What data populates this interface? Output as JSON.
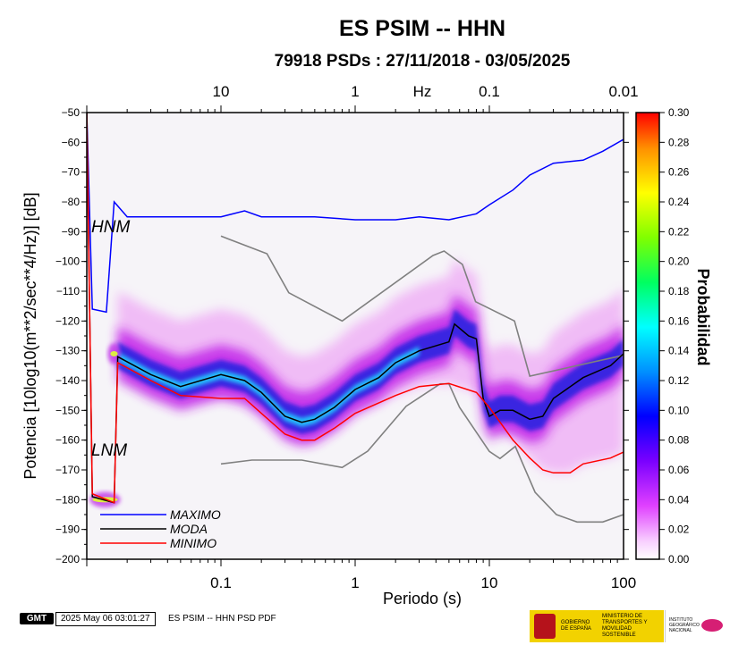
{
  "chart_data": {
    "type": "heatmap",
    "title": "ES PSIM -- HHN",
    "subtitle": "79918 PSDs : 27/11/2018 - 03/05/2025",
    "xlabel": "Periodo (s)",
    "x2label": "Hz",
    "ylabel": "Potencia [10log10(m**2/sec**4/Hz)] [dB]",
    "x_scale": "log",
    "xlim": [
      0.01,
      100
    ],
    "ylim": [
      -200,
      -50
    ],
    "x_ticks": [
      0.1,
      1,
      10,
      100
    ],
    "x_tick_labels": [
      "0.1",
      "1",
      "10",
      "100"
    ],
    "x2_ticks": [
      0.1,
      1,
      10,
      100
    ],
    "x2_tick_labels": [
      "10",
      "1",
      "0.1",
      "0.01"
    ],
    "y_ticks": [
      -200,
      -190,
      -180,
      -170,
      -160,
      -150,
      -140,
      -130,
      -120,
      -110,
      -100,
      -90,
      -80,
      -70,
      -60,
      -50
    ],
    "colorbar": {
      "label": "Probabilidad",
      "range": [
        0.0,
        0.3
      ],
      "ticks": [
        "0.00",
        "0.02",
        "0.04",
        "0.06",
        "0.08",
        "0.10",
        "0.12",
        "0.14",
        "0.16",
        "0.18",
        "0.20",
        "0.22",
        "0.24",
        "0.26",
        "0.28",
        "0.30"
      ]
    },
    "legend": {
      "placement": "bottom-left",
      "entries": [
        {
          "name": "MAXIMO",
          "color": "#0000ff"
        },
        {
          "name": "MODA",
          "color": "#000000"
        },
        {
          "name": "MINIMO",
          "color": "#ff0000"
        }
      ]
    },
    "model_labels": {
      "high": "HNM",
      "low": "LNM"
    },
    "series": [
      {
        "name": "MAXIMO",
        "color": "#0000ff",
        "points": [
          [
            0.01,
            -50
          ],
          [
            0.011,
            -116
          ],
          [
            0.014,
            -117
          ],
          [
            0.016,
            -80
          ],
          [
            0.02,
            -85
          ],
          [
            0.05,
            -85
          ],
          [
            0.1,
            -85
          ],
          [
            0.15,
            -83
          ],
          [
            0.2,
            -85
          ],
          [
            0.5,
            -85
          ],
          [
            1,
            -86
          ],
          [
            2,
            -86
          ],
          [
            3,
            -85
          ],
          [
            5,
            -86
          ],
          [
            8,
            -84
          ],
          [
            10,
            -81
          ],
          [
            15,
            -76
          ],
          [
            20,
            -71
          ],
          [
            30,
            -67
          ],
          [
            50,
            -66
          ],
          [
            70,
            -63
          ],
          [
            100,
            -59
          ]
        ]
      },
      {
        "name": "MODA",
        "color": "#000000",
        "points": [
          [
            0.01,
            -50
          ],
          [
            0.011,
            -179
          ],
          [
            0.016,
            -181
          ],
          [
            0.017,
            -132
          ],
          [
            0.03,
            -138
          ],
          [
            0.05,
            -142
          ],
          [
            0.1,
            -138
          ],
          [
            0.15,
            -140
          ],
          [
            0.2,
            -144
          ],
          [
            0.3,
            -152
          ],
          [
            0.4,
            -154
          ],
          [
            0.5,
            -153
          ],
          [
            0.7,
            -149
          ],
          [
            1,
            -143
          ],
          [
            1.5,
            -139
          ],
          [
            2,
            -134
          ],
          [
            3,
            -130
          ],
          [
            5,
            -127
          ],
          [
            5.5,
            -121
          ],
          [
            7,
            -125
          ],
          [
            8,
            -126
          ],
          [
            9,
            -146
          ],
          [
            10,
            -152
          ],
          [
            12,
            -150
          ],
          [
            15,
            -150
          ],
          [
            20,
            -153
          ],
          [
            25,
            -152
          ],
          [
            30,
            -146
          ],
          [
            50,
            -139
          ],
          [
            80,
            -135
          ],
          [
            100,
            -131
          ]
        ]
      },
      {
        "name": "MINIMO",
        "color": "#ff0000",
        "points": [
          [
            0.01,
            -50
          ],
          [
            0.011,
            -178
          ],
          [
            0.016,
            -181
          ],
          [
            0.017,
            -134
          ],
          [
            0.03,
            -140
          ],
          [
            0.05,
            -145
          ],
          [
            0.1,
            -146
          ],
          [
            0.15,
            -146
          ],
          [
            0.2,
            -151
          ],
          [
            0.3,
            -158
          ],
          [
            0.4,
            -160
          ],
          [
            0.5,
            -160
          ],
          [
            0.7,
            -156
          ],
          [
            1,
            -151
          ],
          [
            2,
            -145
          ],
          [
            3,
            -142
          ],
          [
            5,
            -141
          ],
          [
            8,
            -144
          ],
          [
            10,
            -149
          ],
          [
            15,
            -160
          ],
          [
            20,
            -166
          ],
          [
            25,
            -170
          ],
          [
            30,
            -171
          ],
          [
            40,
            -171
          ],
          [
            50,
            -168
          ],
          [
            80,
            -166
          ],
          [
            100,
            -164
          ]
        ]
      }
    ],
    "reference_models": [
      {
        "name": "HNM",
        "color": "#808080",
        "points": [
          [
            0.1,
            -91.5
          ],
          [
            0.22,
            -97.4
          ],
          [
            0.32,
            -110.5
          ],
          [
            0.8,
            -120
          ],
          [
            3.8,
            -98
          ],
          [
            4.6,
            -96.5
          ],
          [
            6.3,
            -101
          ],
          [
            7.9,
            -113.5
          ],
          [
            15.4,
            -120
          ],
          [
            20,
            -138.5
          ],
          [
            100,
            -131.5
          ]
        ]
      },
      {
        "name": "LNM",
        "color": "#808080",
        "points": [
          [
            0.1,
            -168
          ],
          [
            0.17,
            -166.7
          ],
          [
            0.4,
            -166.7
          ],
          [
            0.8,
            -169.2
          ],
          [
            1.24,
            -163.7
          ],
          [
            2.4,
            -148.6
          ],
          [
            4.3,
            -141.1
          ],
          [
            5,
            -141.1
          ],
          [
            6,
            -149
          ],
          [
            10,
            -163.8
          ],
          [
            12,
            -166.2
          ],
          [
            15.6,
            -162.1
          ],
          [
            21.9,
            -177.5
          ],
          [
            31.6,
            -185
          ],
          [
            45,
            -187.5
          ],
          [
            70,
            -187.5
          ],
          [
            100,
            -185
          ]
        ]
      }
    ],
    "density": {
      "description": "probability density of PSD values per period band",
      "bands": [
        {
          "x": [
            0.015,
            0.017
          ],
          "centers": [
            -131
          ],
          "width": 3,
          "peak": 0.22
        },
        {
          "x": [
            0.011,
            0.017
          ],
          "centers": [
            -180
          ],
          "width": 2,
          "peak": 0.18
        }
      ]
    }
  },
  "footer": {
    "logo_text": "GMT",
    "timestamp": "2025 May 06 03:01:27",
    "label": "ES PSIM -- HHN PSD PDF",
    "gov_text_1": "GOBIERNO DE ESPAÑA",
    "gov_text_2": "MINISTERIO DE TRANSPORTES Y MOVILIDAD SOSTENIBLE",
    "ign_text": "INSTITUTO GEOGRÁFICO NACIONAL"
  }
}
